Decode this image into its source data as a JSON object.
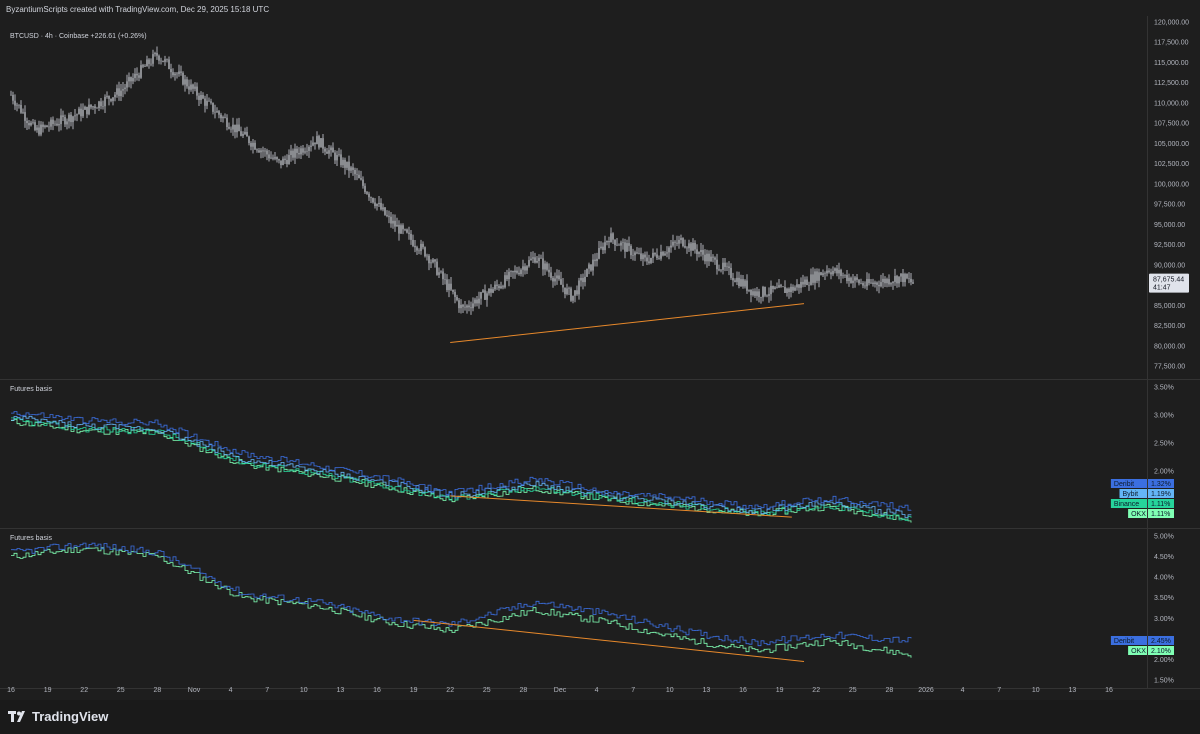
{
  "header": {
    "attribution": "ByzantiumScripts created with TradingView.com, Dec 29, 2025 15:18 UTC"
  },
  "footer": {
    "brand": "TradingView"
  },
  "colors": {
    "background": "#1e1e1e",
    "candle": "#d1d4dc",
    "trendline": "#e8892b",
    "deribit": "#3b6fe0",
    "bybit": "#64b5f6",
    "binance": "#26d49b",
    "okx": "#80ffb4"
  },
  "chart_data": [
    {
      "type": "line",
      "title": "BTCUSD · 4h · Coinbase  +226.61 (+0.26%)",
      "price_badge": {
        "price": "87,675.44",
        "countdown": "41:47"
      },
      "ylim": [
        77500,
        120000
      ],
      "y_ticks": [
        "120,000.00",
        "117,500.00",
        "115,000.00",
        "112,500.00",
        "110,000.00",
        "107,500.00",
        "105,000.00",
        "102,500.00",
        "100,000.00",
        "97,500.00",
        "95,000.00",
        "92,500.00",
        "90,000.00",
        "87,500.00",
        "85,000.00",
        "82,500.00",
        "80,000.00",
        "77,500.00"
      ],
      "series": [
        {
          "x": [
            "Oct 16",
            "Oct 18",
            "Oct 22",
            "Oct 25",
            "Oct 28",
            "Nov 1",
            "Nov 4",
            "Nov 7",
            "Nov 10",
            "Nov 13",
            "Nov 16",
            "Nov 19",
            "Nov 22",
            "Nov 25",
            "Nov 28",
            "Dec 1",
            "Dec 4",
            "Dec 7",
            "Dec 10",
            "Dec 13",
            "Dec 16",
            "Dec 19",
            "Dec 22",
            "Dec 25",
            "Dec 28",
            "Dec 29"
          ],
          "values": [
            111000,
            106500,
            109000,
            111500,
            116000,
            110000,
            106000,
            102500,
            105500,
            101500,
            95500,
            91500,
            84500,
            87500,
            91000,
            86000,
            93500,
            90500,
            93000,
            90000,
            86500,
            87000,
            89500,
            87500,
            88500,
            87675
          ]
        }
      ],
      "trendline": {
        "from": {
          "x": "Nov 21",
          "y": 80400
        },
        "to": {
          "x": "Dec 20",
          "y": 85200
        }
      }
    },
    {
      "type": "line",
      "title": "Futures basis",
      "ylim": [
        1.1,
        3.5
      ],
      "y_ticks": [
        "3.50%",
        "3.00%",
        "2.50%",
        "2.00%"
      ],
      "series": [
        {
          "name": "Deribit",
          "last": "1.32%",
          "x": [
            "Oct 16",
            "Oct 22",
            "Oct 28",
            "Nov 4",
            "Nov 10",
            "Nov 16",
            "Nov 21",
            "Nov 28",
            "Dec 4",
            "Dec 10",
            "Dec 16",
            "Dec 22",
            "Dec 29"
          ],
          "values": [
            3.05,
            2.9,
            2.85,
            2.3,
            2.1,
            1.85,
            1.6,
            1.85,
            1.6,
            1.5,
            1.35,
            1.5,
            1.32
          ]
        },
        {
          "name": "Bybit",
          "last": "1.19%",
          "x": [
            "Oct 16",
            "Oct 22",
            "Oct 28",
            "Nov 4",
            "Nov 10",
            "Nov 16",
            "Nov 21",
            "Nov 28",
            "Dec 4",
            "Dec 10",
            "Dec 16",
            "Dec 22",
            "Dec 29"
          ],
          "values": [
            2.95,
            2.8,
            2.75,
            2.2,
            2.0,
            1.78,
            1.55,
            1.75,
            1.55,
            1.42,
            1.28,
            1.42,
            1.19
          ]
        },
        {
          "name": "Binance",
          "last": "1.11%",
          "x": [
            "Oct 16",
            "Oct 22",
            "Oct 28",
            "Nov 4",
            "Nov 10",
            "Nov 16",
            "Nov 21",
            "Nov 28",
            "Dec 4",
            "Dec 10",
            "Dec 16",
            "Dec 22",
            "Dec 29"
          ],
          "values": [
            2.9,
            2.75,
            2.7,
            2.15,
            1.95,
            1.72,
            1.5,
            1.7,
            1.5,
            1.38,
            1.24,
            1.38,
            1.11
          ]
        },
        {
          "name": "OKX",
          "last": "1.11%",
          "x": [
            "Oct 16",
            "Oct 22",
            "Oct 28",
            "Nov 4",
            "Nov 10",
            "Nov 16",
            "Nov 21",
            "Nov 28",
            "Dec 4",
            "Dec 10",
            "Dec 16",
            "Dec 22",
            "Dec 29"
          ],
          "values": [
            2.88,
            2.72,
            2.68,
            2.12,
            1.93,
            1.7,
            1.48,
            1.68,
            1.48,
            1.36,
            1.22,
            1.36,
            1.11
          ]
        }
      ],
      "trendline": {
        "from": {
          "x": "Nov 21",
          "y": 1.55
        },
        "to": {
          "x": "Dec 19",
          "y": 1.17
        }
      }
    },
    {
      "type": "line",
      "title": "Futures basis",
      "ylim": [
        1.5,
        5.0
      ],
      "y_ticks": [
        "5.00%",
        "4.50%",
        "4.00%",
        "3.50%",
        "3.00%",
        "2.50%",
        "2.00%",
        "1.50%"
      ],
      "series": [
        {
          "name": "Deribit",
          "last": "2.45%",
          "x": [
            "Oct 16",
            "Oct 22",
            "Oct 28",
            "Nov 4",
            "Nov 10",
            "Nov 16",
            "Nov 21",
            "Nov 28",
            "Dec 4",
            "Dec 10",
            "Dec 16",
            "Dec 22",
            "Dec 29"
          ],
          "values": [
            4.6,
            4.8,
            4.6,
            3.6,
            3.4,
            3.0,
            2.85,
            3.4,
            3.1,
            2.7,
            2.4,
            2.6,
            2.45
          ]
        },
        {
          "name": "OKX",
          "last": "2.10%",
          "x": [
            "Oct 16",
            "Oct 22",
            "Oct 28",
            "Nov 4",
            "Nov 10",
            "Nov 16",
            "Nov 21",
            "Nov 28",
            "Dec 4",
            "Dec 10",
            "Dec 16",
            "Dec 22",
            "Dec 29"
          ],
          "values": [
            4.5,
            4.7,
            4.5,
            3.5,
            3.3,
            2.9,
            2.7,
            3.2,
            2.9,
            2.5,
            2.2,
            2.45,
            2.1
          ]
        }
      ],
      "trendline": {
        "from": {
          "x": "Nov 18",
          "y": 2.95
        },
        "to": {
          "x": "Dec 20",
          "y": 1.95
        }
      }
    }
  ],
  "x_axis": {
    "ticks": [
      "16",
      "19",
      "22",
      "25",
      "28",
      "Nov",
      "4",
      "7",
      "10",
      "13",
      "16",
      "19",
      "22",
      "25",
      "28",
      "Dec",
      "4",
      "7",
      "10",
      "13",
      "16",
      "19",
      "22",
      "25",
      "28",
      "2026",
      "4",
      "7",
      "10",
      "13",
      "16"
    ]
  }
}
